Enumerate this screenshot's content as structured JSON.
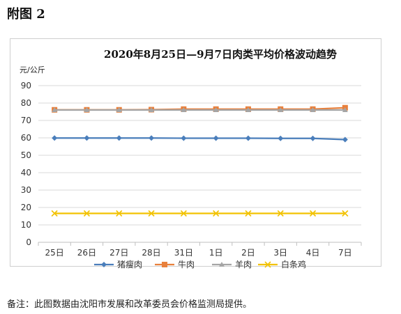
{
  "heading": "附图 2",
  "note": "备注：此图数据由沈阳市发展和改革委员会价格监测局提供。",
  "chart_data": {
    "type": "line",
    "title": "2020年8月25日—9月7日肉类平均价格波动趋势",
    "ylabel": "元/公斤",
    "xlabel": "",
    "ylim": [
      0,
      90
    ],
    "yticks": [
      0,
      10,
      20,
      30,
      40,
      50,
      60,
      70,
      80,
      90
    ],
    "grid": true,
    "legend_position": "bottom",
    "categories": [
      "25日",
      "26日",
      "27日",
      "28日",
      "31日",
      "1日",
      "2日",
      "3日",
      "4日",
      "7日"
    ],
    "series": [
      {
        "name": "猪瘦肉",
        "color": "#4a7ebb",
        "marker": "diamond",
        "values": [
          59.9,
          59.9,
          59.9,
          59.9,
          59.8,
          59.8,
          59.8,
          59.7,
          59.7,
          59.0
        ]
      },
      {
        "name": "牛肉",
        "color": "#e8803c",
        "marker": "square",
        "values": [
          76.1,
          76.1,
          76.1,
          76.2,
          76.5,
          76.5,
          76.5,
          76.5,
          76.5,
          77.3
        ]
      },
      {
        "name": "羊肉",
        "color": "#a5a5a5",
        "marker": "triangle",
        "values": [
          76.0,
          76.0,
          76.0,
          76.0,
          76.0,
          76.0,
          76.0,
          76.0,
          76.0,
          76.0
        ]
      },
      {
        "name": "白条鸡",
        "color": "#f2c200",
        "marker": "x",
        "values": [
          16.6,
          16.6,
          16.6,
          16.6,
          16.6,
          16.6,
          16.6,
          16.6,
          16.6,
          16.6
        ]
      }
    ]
  }
}
